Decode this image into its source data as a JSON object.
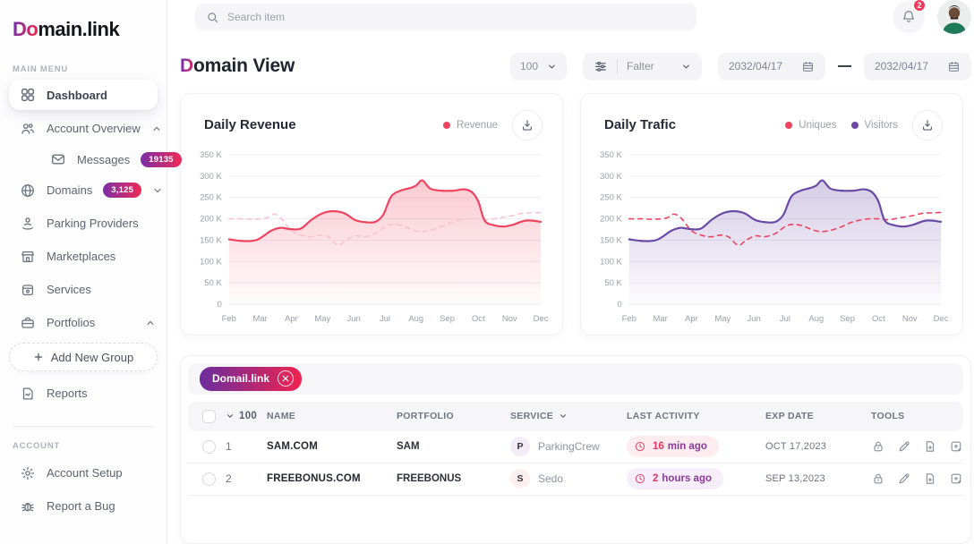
{
  "brand": {
    "logo_accent": "Do",
    "logo_rest": "main.link"
  },
  "topbar": {
    "search_placeholder": "Search item",
    "notification_count": "2"
  },
  "sidebar": {
    "main_menu_label": "MAIN MENU",
    "account_label": "ACCOUNT",
    "items": [
      {
        "label": "Dashboard",
        "icon": "grid-icon",
        "active": true
      },
      {
        "label": "Account Overview",
        "icon": "users-icon",
        "chevron": "up"
      },
      {
        "label": "Messages",
        "icon": "mail-icon",
        "badge": "19135"
      },
      {
        "label": "Domains",
        "icon": "globe-icon",
        "badge": "3,125",
        "chevron": "down"
      },
      {
        "label": "Parking Providers",
        "icon": "parking-icon"
      },
      {
        "label": "Marketplaces",
        "icon": "store-icon"
      },
      {
        "label": "Services",
        "icon": "services-icon"
      },
      {
        "label": "Portfolios",
        "icon": "briefcase-icon",
        "chevron": "up"
      },
      {
        "label": "Add New Group",
        "icon": "plus-icon"
      },
      {
        "label": "Reports",
        "icon": "report-icon"
      }
    ],
    "account_items": [
      {
        "label": "Account Setup",
        "icon": "gear-icon"
      },
      {
        "label": "Report a Bug",
        "icon": "bug-icon"
      }
    ]
  },
  "header": {
    "title_accent": "D",
    "title_rest": "omain View",
    "page_size": "100",
    "filter_label": "Falter",
    "date_from": "2032/04/17",
    "date_to": "2032/04/17"
  },
  "chart_data": [
    {
      "type": "line",
      "title": "Daily Revenue",
      "legend": [
        {
          "label": "Revenue",
          "color": "#f0435f"
        }
      ],
      "x_labels": [
        "Feb",
        "Mar",
        "Apr",
        "May",
        "Jun",
        "Jul",
        "Aug",
        "Sep",
        "Oct",
        "Nov",
        "Dec"
      ],
      "ylim": [
        0,
        350
      ],
      "grid": true,
      "y_ticks": [
        {
          "label": "0",
          "value": 0
        },
        {
          "label": "50 K",
          "value": 50
        },
        {
          "label": "100 K",
          "value": 100
        },
        {
          "label": "150 K",
          "value": 150
        },
        {
          "label": "200 K",
          "value": 200
        },
        {
          "label": "250 K",
          "value": 250
        },
        {
          "label": "300 K",
          "value": 300
        },
        {
          "label": "350 K",
          "value": 350
        }
      ],
      "series": [
        {
          "name": "Revenue",
          "color": "#f0435f",
          "style": "solid",
          "area": true,
          "points": [
            [
              0,
              152
            ],
            [
              0.45,
              148
            ],
            [
              0.9,
              151
            ],
            [
              1.35,
              172
            ],
            [
              1.65,
              179
            ],
            [
              1.95,
              176
            ],
            [
              2.3,
              177
            ],
            [
              2.65,
              198
            ],
            [
              3.0,
              213
            ],
            [
              3.35,
              218
            ],
            [
              3.7,
              213
            ],
            [
              4.05,
              197
            ],
            [
              4.4,
              192
            ],
            [
              4.7,
              193
            ],
            [
              4.95,
              210
            ],
            [
              5.2,
              252
            ],
            [
              5.5,
              266
            ],
            [
              5.8,
              272
            ],
            [
              6.0,
              278
            ],
            [
              6.2,
              290
            ],
            [
              6.45,
              271
            ],
            [
              6.8,
              266
            ],
            [
              7.2,
              266
            ],
            [
              7.55,
              269
            ],
            [
              7.8,
              262
            ],
            [
              8.0,
              240
            ],
            [
              8.2,
              196
            ],
            [
              8.5,
              185
            ],
            [
              8.8,
              182
            ],
            [
              9.1,
              186
            ],
            [
              9.45,
              195
            ],
            [
              9.7,
              196
            ],
            [
              10,
              193
            ]
          ]
        },
        {
          "name": "Revenue (dashed)",
          "color": "#f8c3cf",
          "style": "dashed",
          "area": false,
          "points": [
            [
              0,
              200
            ],
            [
              0.4,
              200
            ],
            [
              0.8,
              199
            ],
            [
              1.2,
              202
            ],
            [
              1.45,
              211
            ],
            [
              1.7,
              199
            ],
            [
              2.0,
              172
            ],
            [
              2.35,
              161
            ],
            [
              2.65,
              158
            ],
            [
              2.95,
              162
            ],
            [
              3.2,
              157
            ],
            [
              3.5,
              138
            ],
            [
              3.75,
              150
            ],
            [
              4.05,
              160
            ],
            [
              4.35,
              158
            ],
            [
              4.7,
              166
            ],
            [
              5.0,
              182
            ],
            [
              5.25,
              187
            ],
            [
              5.55,
              184
            ],
            [
              5.85,
              175
            ],
            [
              6.15,
              170
            ],
            [
              6.45,
              173
            ],
            [
              6.8,
              181
            ],
            [
              7.1,
              191
            ],
            [
              7.4,
              197
            ],
            [
              7.7,
              200
            ],
            [
              8.0,
              200
            ],
            [
              8.3,
              198
            ],
            [
              8.65,
              202
            ],
            [
              9.0,
              206
            ],
            [
              9.4,
              213
            ],
            [
              9.7,
              214
            ],
            [
              10,
              215
            ]
          ]
        }
      ]
    },
    {
      "type": "line",
      "title": "Daily Trafic",
      "legend": [
        {
          "label": "Uniques",
          "color": "#ef4460"
        },
        {
          "label": "Visitors",
          "color": "#6b4aa6"
        }
      ],
      "x_labels": [
        "Feb",
        "Mar",
        "Apr",
        "May",
        "Jun",
        "Jul",
        "Aug",
        "Sep",
        "Oct",
        "Nov",
        "Dec"
      ],
      "ylim": [
        0,
        350
      ],
      "grid": true,
      "y_ticks": [
        {
          "label": "0",
          "value": 0
        },
        {
          "label": "50 K",
          "value": 50
        },
        {
          "label": "100 K",
          "value": 100
        },
        {
          "label": "150 K",
          "value": 150
        },
        {
          "label": "200 K",
          "value": 200
        },
        {
          "label": "250 K",
          "value": 250
        },
        {
          "label": "300 K",
          "value": 300
        },
        {
          "label": "350 K",
          "value": 350
        }
      ],
      "series": [
        {
          "name": "Uniques",
          "color": "#ef4460",
          "style": "dashed",
          "area": false,
          "points": [
            [
              0,
              200
            ],
            [
              0.4,
              200
            ],
            [
              0.8,
              199
            ],
            [
              1.2,
              202
            ],
            [
              1.45,
              211
            ],
            [
              1.7,
              199
            ],
            [
              2.0,
              172
            ],
            [
              2.35,
              161
            ],
            [
              2.65,
              158
            ],
            [
              2.95,
              162
            ],
            [
              3.2,
              157
            ],
            [
              3.5,
              138
            ],
            [
              3.75,
              150
            ],
            [
              4.05,
              160
            ],
            [
              4.35,
              158
            ],
            [
              4.7,
              166
            ],
            [
              5.0,
              182
            ],
            [
              5.25,
              187
            ],
            [
              5.55,
              184
            ],
            [
              5.85,
              175
            ],
            [
              6.15,
              170
            ],
            [
              6.45,
              173
            ],
            [
              6.8,
              181
            ],
            [
              7.1,
              191
            ],
            [
              7.4,
              197
            ],
            [
              7.7,
              200
            ],
            [
              8.0,
              200
            ],
            [
              8.3,
              198
            ],
            [
              8.65,
              202
            ],
            [
              9.0,
              206
            ],
            [
              9.4,
              213
            ],
            [
              9.7,
              214
            ],
            [
              10,
              215
            ]
          ]
        },
        {
          "name": "Visitors",
          "color": "#6b4aa6",
          "style": "solid",
          "area": true,
          "points": [
            [
              0,
              152
            ],
            [
              0.45,
              148
            ],
            [
              0.9,
              151
            ],
            [
              1.35,
              172
            ],
            [
              1.65,
              179
            ],
            [
              1.95,
              176
            ],
            [
              2.3,
              177
            ],
            [
              2.65,
              198
            ],
            [
              3.0,
              213
            ],
            [
              3.35,
              218
            ],
            [
              3.7,
              213
            ],
            [
              4.05,
              197
            ],
            [
              4.4,
              192
            ],
            [
              4.7,
              193
            ],
            [
              4.95,
              210
            ],
            [
              5.2,
              252
            ],
            [
              5.5,
              266
            ],
            [
              5.8,
              272
            ],
            [
              6.0,
              278
            ],
            [
              6.2,
              290
            ],
            [
              6.45,
              271
            ],
            [
              6.8,
              266
            ],
            [
              7.2,
              266
            ],
            [
              7.55,
              269
            ],
            [
              7.8,
              262
            ],
            [
              8.0,
              240
            ],
            [
              8.2,
              196
            ],
            [
              8.5,
              185
            ],
            [
              8.8,
              182
            ],
            [
              9.1,
              186
            ],
            [
              9.45,
              195
            ],
            [
              9.7,
              196
            ],
            [
              10,
              193
            ]
          ]
        }
      ]
    }
  ],
  "table": {
    "chip_label": "Domail.link",
    "select_all_count": "100",
    "columns": [
      "NAME",
      "PORTFOLIO",
      "SERVICE",
      "LAST ACTIVITY",
      "EXP DATE",
      "TOOLS"
    ],
    "rows": [
      {
        "num": "1",
        "name": "SAM.COM",
        "portfolio": "SAM",
        "service_initial": "P",
        "service": "ParkingCrew",
        "activity_num": "16",
        "activity_unit": "min ago",
        "activity_theme": "pink",
        "exp_date": "OCT 17,2023"
      },
      {
        "num": "2",
        "name": "FREEBONUS.COM",
        "portfolio": "FREEBONUS",
        "service_initial": "S",
        "service": "Sedo",
        "activity_num": "2",
        "activity_unit": "hours ago",
        "activity_theme": "purple",
        "exp_date": "SEP 13,2023"
      }
    ]
  }
}
